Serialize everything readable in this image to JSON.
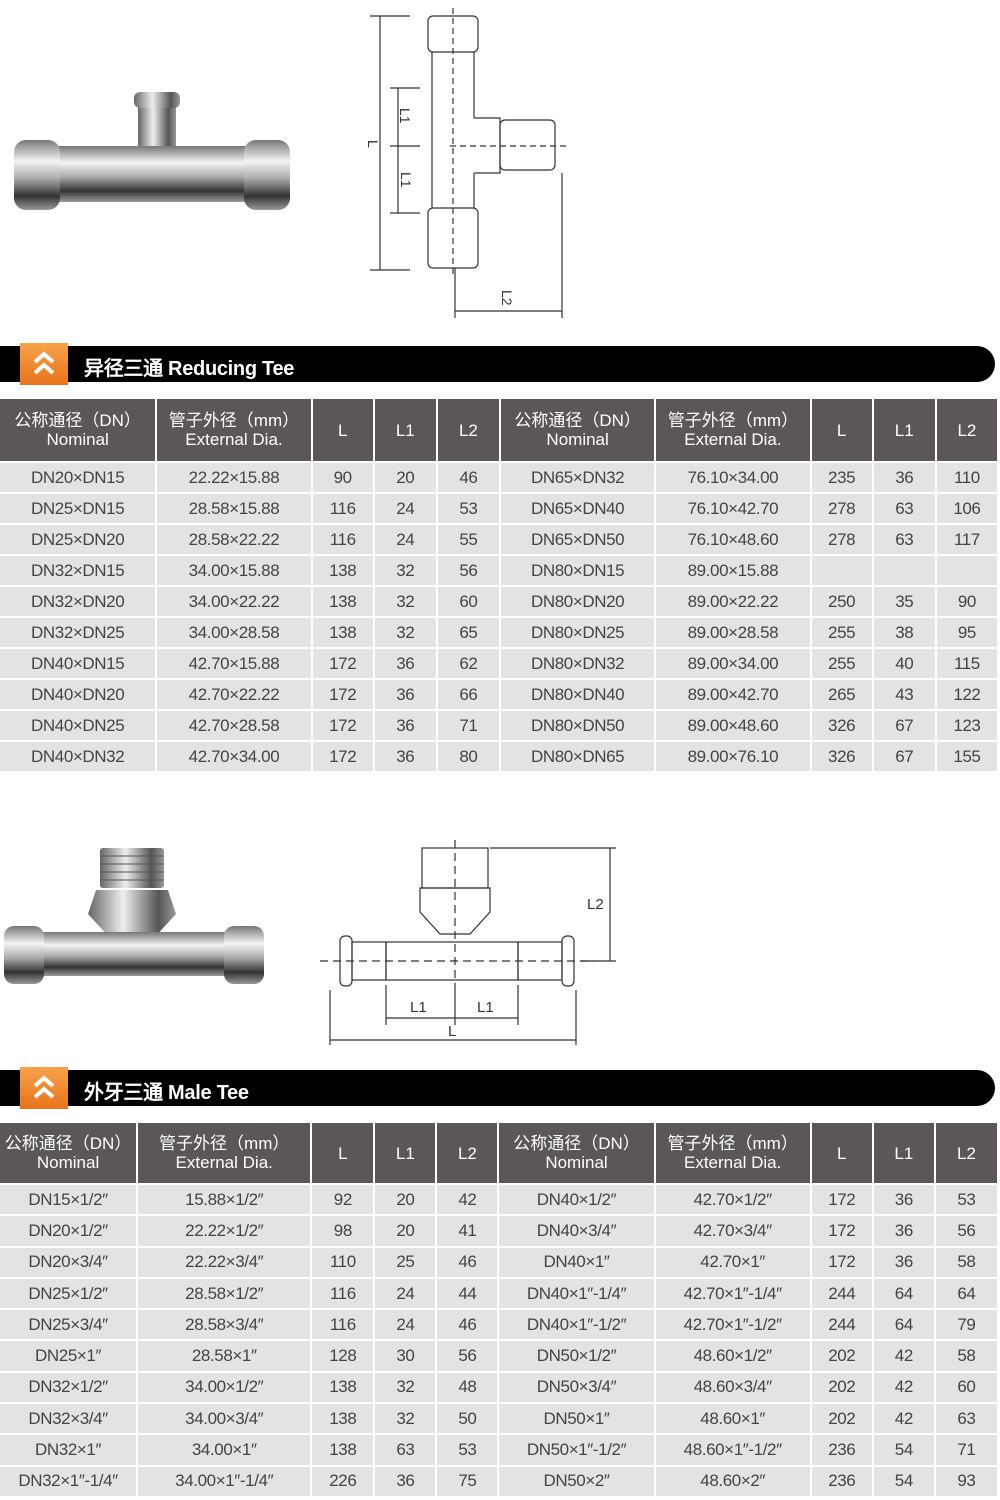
{
  "reducing_tee": {
    "title": "异径三通 Reducing Tee",
    "diagram_labels": {
      "L": "L",
      "L1_top": "L1",
      "L1_bottom": "L1",
      "L2": "L2"
    },
    "headers": [
      "公称通径（DN）\nNominal",
      "管子外径（mm）\nExternal Dia.",
      "L",
      "L1",
      "L2",
      "公称通径（DN）\nNominal",
      "管子外径（mm）\nExternal Dia.",
      "L",
      "L1",
      "L2"
    ],
    "rows": [
      [
        "DN20×DN15",
        "22.22×15.88",
        "90",
        "20",
        "46",
        "DN65×DN32",
        "76.10×34.00",
        "235",
        "36",
        "110"
      ],
      [
        "DN25×DN15",
        "28.58×15.88",
        "116",
        "24",
        "53",
        "DN65×DN40",
        "76.10×42.70",
        "278",
        "63",
        "106"
      ],
      [
        "DN25×DN20",
        "28.58×22.22",
        "116",
        "24",
        "55",
        "DN65×DN50",
        "76.10×48.60",
        "278",
        "63",
        "117"
      ],
      [
        "DN32×DN15",
        "34.00×15.88",
        "138",
        "32",
        "56",
        "DN80×DN15",
        "89.00×15.88",
        "",
        "",
        ""
      ],
      [
        "DN32×DN20",
        "34.00×22.22",
        "138",
        "32",
        "60",
        "DN80×DN20",
        "89.00×22.22",
        "250",
        "35",
        "90"
      ],
      [
        "DN32×DN25",
        "34.00×28.58",
        "138",
        "32",
        "65",
        "DN80×DN25",
        "89.00×28.58",
        "255",
        "38",
        "95"
      ],
      [
        "DN40×DN15",
        "42.70×15.88",
        "172",
        "36",
        "62",
        "DN80×DN32",
        "89.00×34.00",
        "255",
        "40",
        "115"
      ],
      [
        "DN40×DN20",
        "42.70×22.22",
        "172",
        "36",
        "66",
        "DN80×DN40",
        "89.00×42.70",
        "265",
        "43",
        "122"
      ],
      [
        "DN40×DN25",
        "42.70×28.58",
        "172",
        "36",
        "71",
        "DN80×DN50",
        "89.00×48.60",
        "326",
        "67",
        "123"
      ],
      [
        "DN40×DN32",
        "42.70×34.00",
        "172",
        "36",
        "80",
        "DN80×DN65",
        "89.00×76.10",
        "326",
        "67",
        "155"
      ]
    ]
  },
  "male_tee": {
    "title": "外牙三通 Male Tee",
    "diagram_labels": {
      "L": "L",
      "L1_left": "L1",
      "L1_right": "L1",
      "L2": "L2"
    },
    "headers": [
      "公称通径（DN）\nNominal",
      "管子外径（mm）\nExternal Dia.",
      "L",
      "L1",
      "L2",
      "公称通径（DN）\nNominal",
      "管子外径（mm）\nExternal Dia.",
      "L",
      "L1",
      "L2"
    ],
    "rows": [
      [
        "DN15×1/2″",
        "15.88×1/2″",
        "92",
        "20",
        "42",
        "DN40×1/2″",
        "42.70×1/2″",
        "172",
        "36",
        "53"
      ],
      [
        "DN20×1/2″",
        "22.22×1/2″",
        "98",
        "20",
        "41",
        "DN40×3/4″",
        "42.70×3/4″",
        "172",
        "36",
        "56"
      ],
      [
        "DN20×3/4″",
        "22.22×3/4″",
        "110",
        "25",
        "46",
        "DN40×1″",
        "42.70×1″",
        "172",
        "36",
        "58"
      ],
      [
        "DN25×1/2″",
        "28.58×1/2″",
        "116",
        "24",
        "44",
        "DN40×1″-1/4″",
        "42.70×1″-1/4″",
        "244",
        "64",
        "64"
      ],
      [
        "DN25×3/4″",
        "28.58×3/4″",
        "116",
        "24",
        "46",
        "DN40×1″-1/2″",
        "42.70×1″-1/2″",
        "244",
        "64",
        "79"
      ],
      [
        "DN25×1″",
        "28.58×1″",
        "128",
        "30",
        "56",
        "DN50×1/2″",
        "48.60×1/2″",
        "202",
        "42",
        "58"
      ],
      [
        "DN32×1/2″",
        "34.00×1/2″",
        "138",
        "32",
        "48",
        "DN50×3/4″",
        "48.60×3/4″",
        "202",
        "42",
        "60"
      ],
      [
        "DN32×3/4″",
        "34.00×3/4″",
        "138",
        "32",
        "50",
        "DN50×1″",
        "48.60×1″",
        "202",
        "42",
        "63"
      ],
      [
        "DN32×1″",
        "34.00×1″",
        "138",
        "63",
        "53",
        "DN50×1″-1/2″",
        "48.60×1″-1/2″",
        "236",
        "54",
        "71"
      ],
      [
        "DN32×1″-1/4″",
        "34.00×1″-1/4″",
        "226",
        "36",
        "75",
        "DN50×2″",
        "48.60×2″",
        "236",
        "54",
        "93"
      ]
    ]
  },
  "colors": {
    "banner": "#000000",
    "badge": "#f08a2c",
    "header_bg": "#5b5759",
    "cell_bg": "#e3e3e3"
  }
}
